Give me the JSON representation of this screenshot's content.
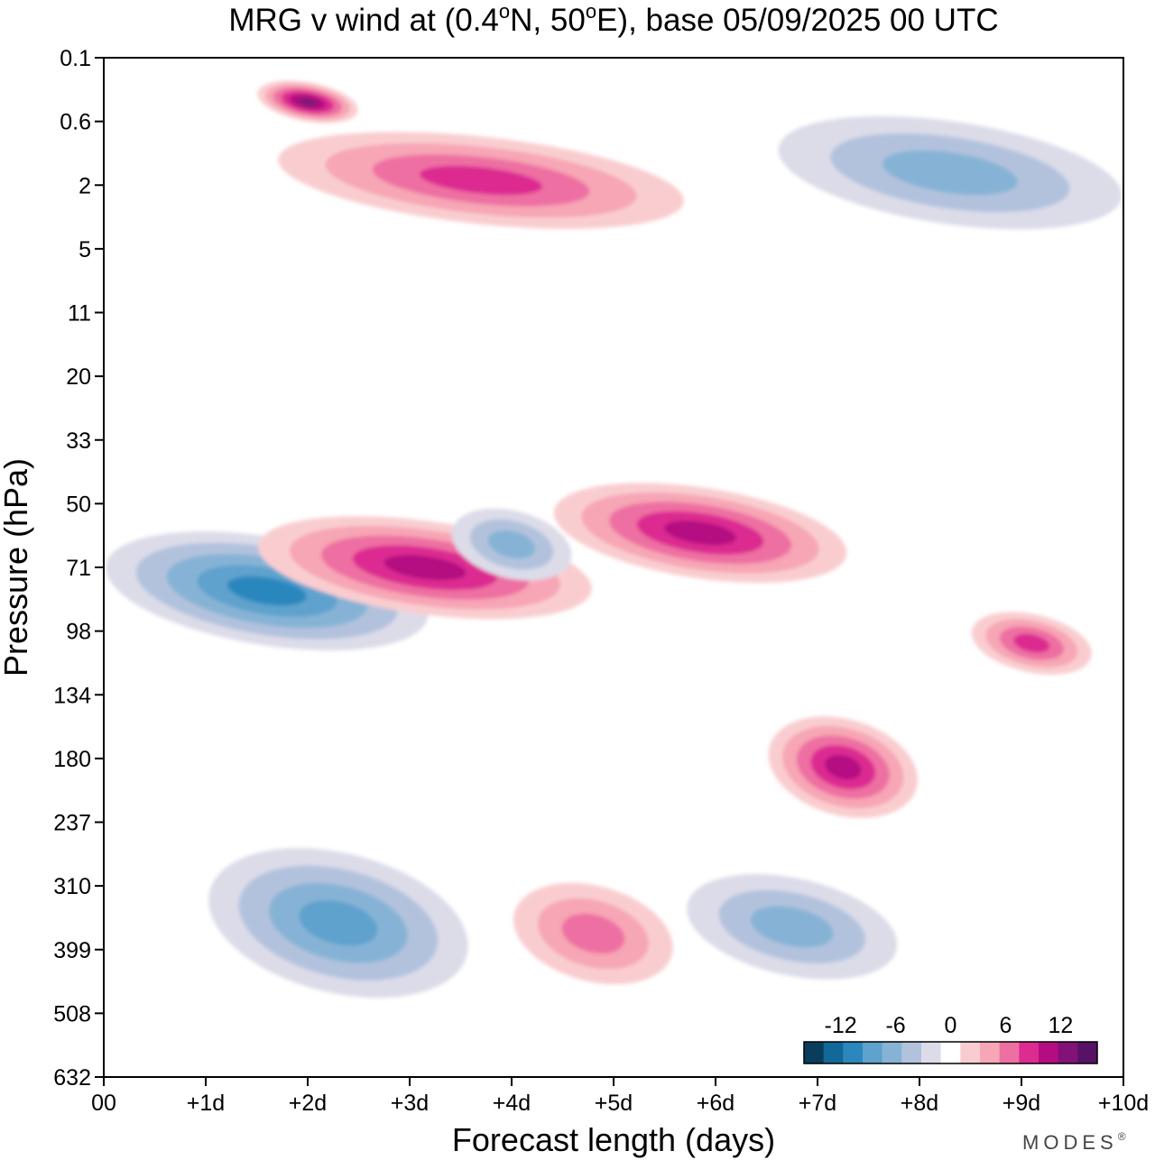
{
  "chart_data": {
    "type": "contour",
    "title": "MRG v wind at (0.4°N, 50°E),  base 05/09/2025  00 UTC",
    "title_parts": {
      "prefix": "MRG v wind at (0.4",
      "deg1": "o",
      "middle": "N, 50",
      "deg2": "o",
      "suffix": "E),  base 05/09/2025  00 UTC"
    },
    "xlabel": "Forecast length (days)",
    "ylabel": "Pressure (hPa)",
    "x_ticks": [
      "00",
      "+1d",
      "+2d",
      "+3d",
      "+4d",
      "+5d",
      "+6d",
      "+7d",
      "+8d",
      "+9d",
      "+10d"
    ],
    "y_ticks": [
      "0.1",
      "0.6",
      "2",
      "5",
      "11",
      "20",
      "33",
      "50",
      "71",
      "98",
      "134",
      "180",
      "237",
      "310",
      "399",
      "508",
      "632"
    ],
    "xlim_days": [
      0,
      10
    ],
    "colorbar": {
      "levels": [
        -14,
        -12,
        -10,
        -8,
        -6,
        -4,
        -2,
        2,
        4,
        6,
        8,
        10,
        12,
        14
      ],
      "tick_labels": [
        "-12",
        "-6",
        "0",
        "6",
        "12"
      ],
      "tick_values": [
        -12,
        -6,
        0,
        6,
        12
      ],
      "colors": [
        "#0a3d5c",
        "#13689a",
        "#2c87bd",
        "#5ea2cd",
        "#86b3d5",
        "#b2c2dd",
        "#dcdce9",
        "#ffffff",
        "#f9cdd0",
        "#f7a6b5",
        "#ee6fa2",
        "#dc2c91",
        "#b50c82",
        "#821277",
        "#561267"
      ]
    },
    "features": [
      {
        "name": "negative-band-50-98hPa",
        "sign": "negative",
        "peak": -11,
        "day_start": 0,
        "day_end": 3.2,
        "pressure_start": 60,
        "pressure_end": 105
      },
      {
        "name": "positive-band-50-80hPa",
        "sign": "positive",
        "peak": 10,
        "day_start": 1.5,
        "day_end": 4.8,
        "pressure_start": 55,
        "pressure_end": 90
      },
      {
        "name": "negative-band-50-75hPa",
        "sign": "negative",
        "peak": -7,
        "day_start": 3.4,
        "day_end": 4.6,
        "pressure_start": 52,
        "pressure_end": 75
      },
      {
        "name": "positive-band-45-75hPa",
        "sign": "positive",
        "peak": 10,
        "day_start": 4.4,
        "day_end": 7.3,
        "pressure_start": 45,
        "pressure_end": 75
      },
      {
        "name": "positive-core-180hPa",
        "sign": "positive",
        "peak": 10,
        "day_start": 6.5,
        "day_end": 8.0,
        "pressure_start": 150,
        "pressure_end": 230
      },
      {
        "name": "positive-core-98hPa",
        "sign": "positive",
        "peak": 8,
        "day_start": 8.5,
        "day_end": 9.7,
        "pressure_start": 90,
        "pressure_end": 120
      },
      {
        "name": "negative-core-340hPa",
        "sign": "negative",
        "peak": -8,
        "day_start": 1.0,
        "day_end": 3.6,
        "pressure_start": 270,
        "pressure_end": 470
      },
      {
        "name": "positive-core-360hPa",
        "sign": "positive",
        "peak": 6,
        "day_start": 4.0,
        "day_end": 5.6,
        "pressure_start": 310,
        "pressure_end": 450
      },
      {
        "name": "negative-core-350hPa",
        "sign": "negative",
        "peak": -7,
        "day_start": 5.7,
        "day_end": 7.8,
        "pressure_start": 300,
        "pressure_end": 440
      },
      {
        "name": "negative-band-upper-2hPa",
        "sign": "negative",
        "peak": -7,
        "day_start": 6.6,
        "day_end": 10,
        "pressure_start": 0.6,
        "pressure_end": 3.5
      },
      {
        "name": "positive-core-upper-1hPa",
        "sign": "positive",
        "peak": 8,
        "day_start": 1.7,
        "day_end": 5.7,
        "pressure_start": 0.8,
        "pressure_end": 3.5
      },
      {
        "name": "positive-core-0.3hPa",
        "sign": "positive",
        "peak": 12,
        "day_start": 1.5,
        "day_end": 2.5,
        "pressure_start": 0.2,
        "pressure_end": 0.6
      }
    ]
  },
  "brand": {
    "text": "MODES",
    "mark": "®"
  }
}
